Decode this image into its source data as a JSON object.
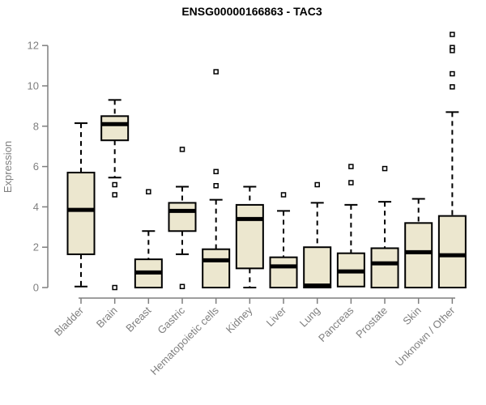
{
  "chart_data": {
    "type": "boxplot",
    "title": "ENSG00000166863 - TAC3",
    "xlabel": "",
    "ylabel": "Expression",
    "ylim": [
      0,
      12
    ],
    "yticks": [
      0,
      2,
      4,
      6,
      8,
      10,
      12
    ],
    "grid": false,
    "legend": "none",
    "categories": [
      "Bladder",
      "Brain",
      "Breast",
      "Gastric",
      "Hematopoietic cells",
      "Kidney",
      "Liver",
      "Lung",
      "Pancreas",
      "Prostate",
      "Skin",
      "Unknown / Other"
    ],
    "series": [
      {
        "category": "Bladder",
        "low": 0.05,
        "q1": 1.65,
        "median": 3.85,
        "q3": 5.7,
        "high": 8.15,
        "outliers": []
      },
      {
        "category": "Brain",
        "low": 5.45,
        "q1": 7.3,
        "median": 8.1,
        "q3": 8.5,
        "high": 9.3,
        "outliers": [
          5.1,
          4.6,
          0.0
        ]
      },
      {
        "category": "Breast",
        "low": 0.0,
        "q1": 0.0,
        "median": 0.75,
        "q3": 1.4,
        "high": 2.8,
        "outliers": [
          4.75
        ]
      },
      {
        "category": "Gastric",
        "low": 1.65,
        "q1": 2.8,
        "median": 3.8,
        "q3": 4.2,
        "high": 5.0,
        "outliers": [
          6.85,
          0.05
        ]
      },
      {
        "category": "Hematopoietic cells",
        "low": 0.0,
        "q1": 0.0,
        "median": 1.35,
        "q3": 1.9,
        "high": 4.35,
        "outliers": [
          10.7,
          5.75,
          5.05
        ]
      },
      {
        "category": "Kidney",
        "low": 0.0,
        "q1": 0.95,
        "median": 3.4,
        "q3": 4.1,
        "high": 5.0,
        "outliers": []
      },
      {
        "category": "Liver",
        "low": 0.0,
        "q1": 0.0,
        "median": 1.05,
        "q3": 1.5,
        "high": 3.8,
        "outliers": [
          4.6
        ]
      },
      {
        "category": "Lung",
        "low": 0.0,
        "q1": 0.0,
        "median": 0.1,
        "q3": 2.0,
        "high": 4.2,
        "outliers": [
          5.1
        ]
      },
      {
        "category": "Pancreas",
        "low": 0.05,
        "q1": 0.05,
        "median": 0.8,
        "q3": 1.7,
        "high": 4.1,
        "outliers": [
          6.0,
          5.2
        ]
      },
      {
        "category": "Prostate",
        "low": 0.0,
        "q1": 0.0,
        "median": 1.2,
        "q3": 1.95,
        "high": 4.25,
        "outliers": [
          5.9
        ]
      },
      {
        "category": "Skin",
        "low": 0.0,
        "q1": 0.0,
        "median": 1.75,
        "q3": 3.2,
        "high": 4.4,
        "outliers": []
      },
      {
        "category": "Unknown / Other",
        "low": 0.0,
        "q1": 0.0,
        "median": 1.6,
        "q3": 3.55,
        "high": 8.7,
        "outliers": [
          12.55,
          11.9,
          11.75,
          10.6,
          9.95
        ]
      }
    ],
    "colors": {
      "box_fill": "#ece7cf",
      "box_border": "#000000",
      "median": "#000000",
      "whisker": "#000000",
      "outlier_stroke": "#000000",
      "outlier_fill": "#ffffff",
      "axis": "#7f7f7f",
      "tick_text": "#7f7f7f",
      "title_text": "#000000",
      "background": "#ffffff"
    }
  }
}
